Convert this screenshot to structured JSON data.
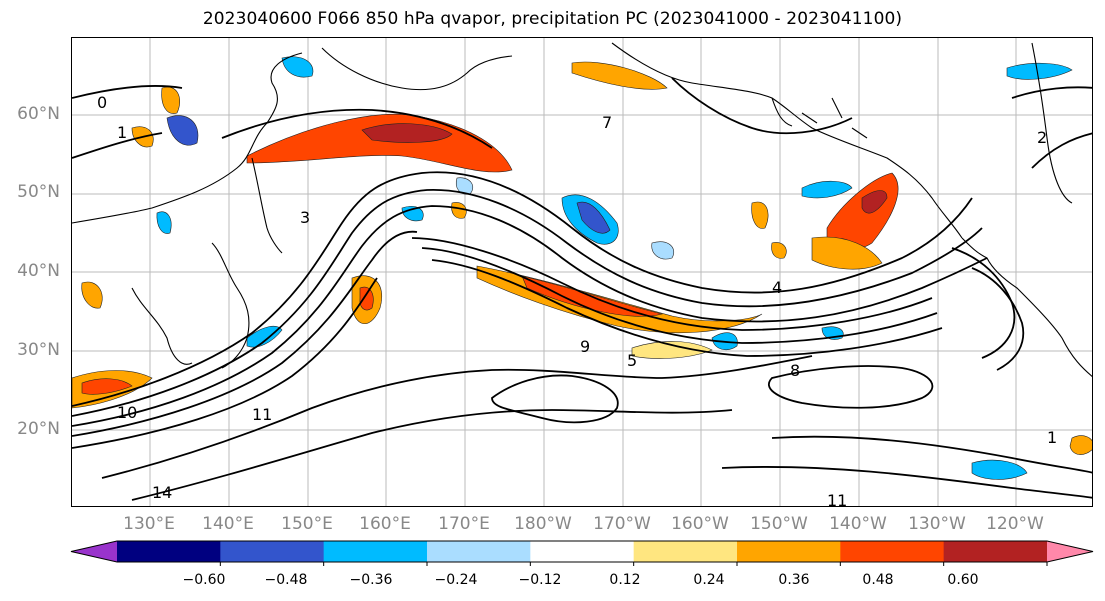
{
  "title": "2023040600 F066 850 hPa qvapor, precipitation PC (2023041000 - 2023041100)",
  "lat_labels": [
    "60°N",
    "50°N",
    "40°N",
    "30°N",
    "20°N"
  ],
  "lon_labels": [
    "130°E",
    "140°E",
    "150°E",
    "160°E",
    "170°E",
    "180°W",
    "170°W",
    "160°W",
    "150°W",
    "140°W",
    "130°W",
    "120°W"
  ],
  "colorbar": {
    "colors": [
      "#9933cc",
      "#000080",
      "#3355cc",
      "#00bbff",
      "#aaddff",
      "#ffffff",
      "#ffe680",
      "#ffa500",
      "#ff4500",
      "#b22222",
      "#ff88aa"
    ],
    "ticks": [
      "−0.60",
      "−0.48",
      "−0.36",
      "−0.24",
      "−0.12",
      "0.12",
      "0.24",
      "0.36",
      "0.48",
      "0.60"
    ]
  },
  "contour_labels": [
    "0",
    "1",
    "2",
    "3",
    "4",
    "5",
    "7",
    "8",
    "9",
    "10",
    "11",
    "14"
  ],
  "colors": {
    "land_line": "#000000",
    "contour": "#000000",
    "grid": "#bbbbbb",
    "axis_text": "#888888"
  }
}
